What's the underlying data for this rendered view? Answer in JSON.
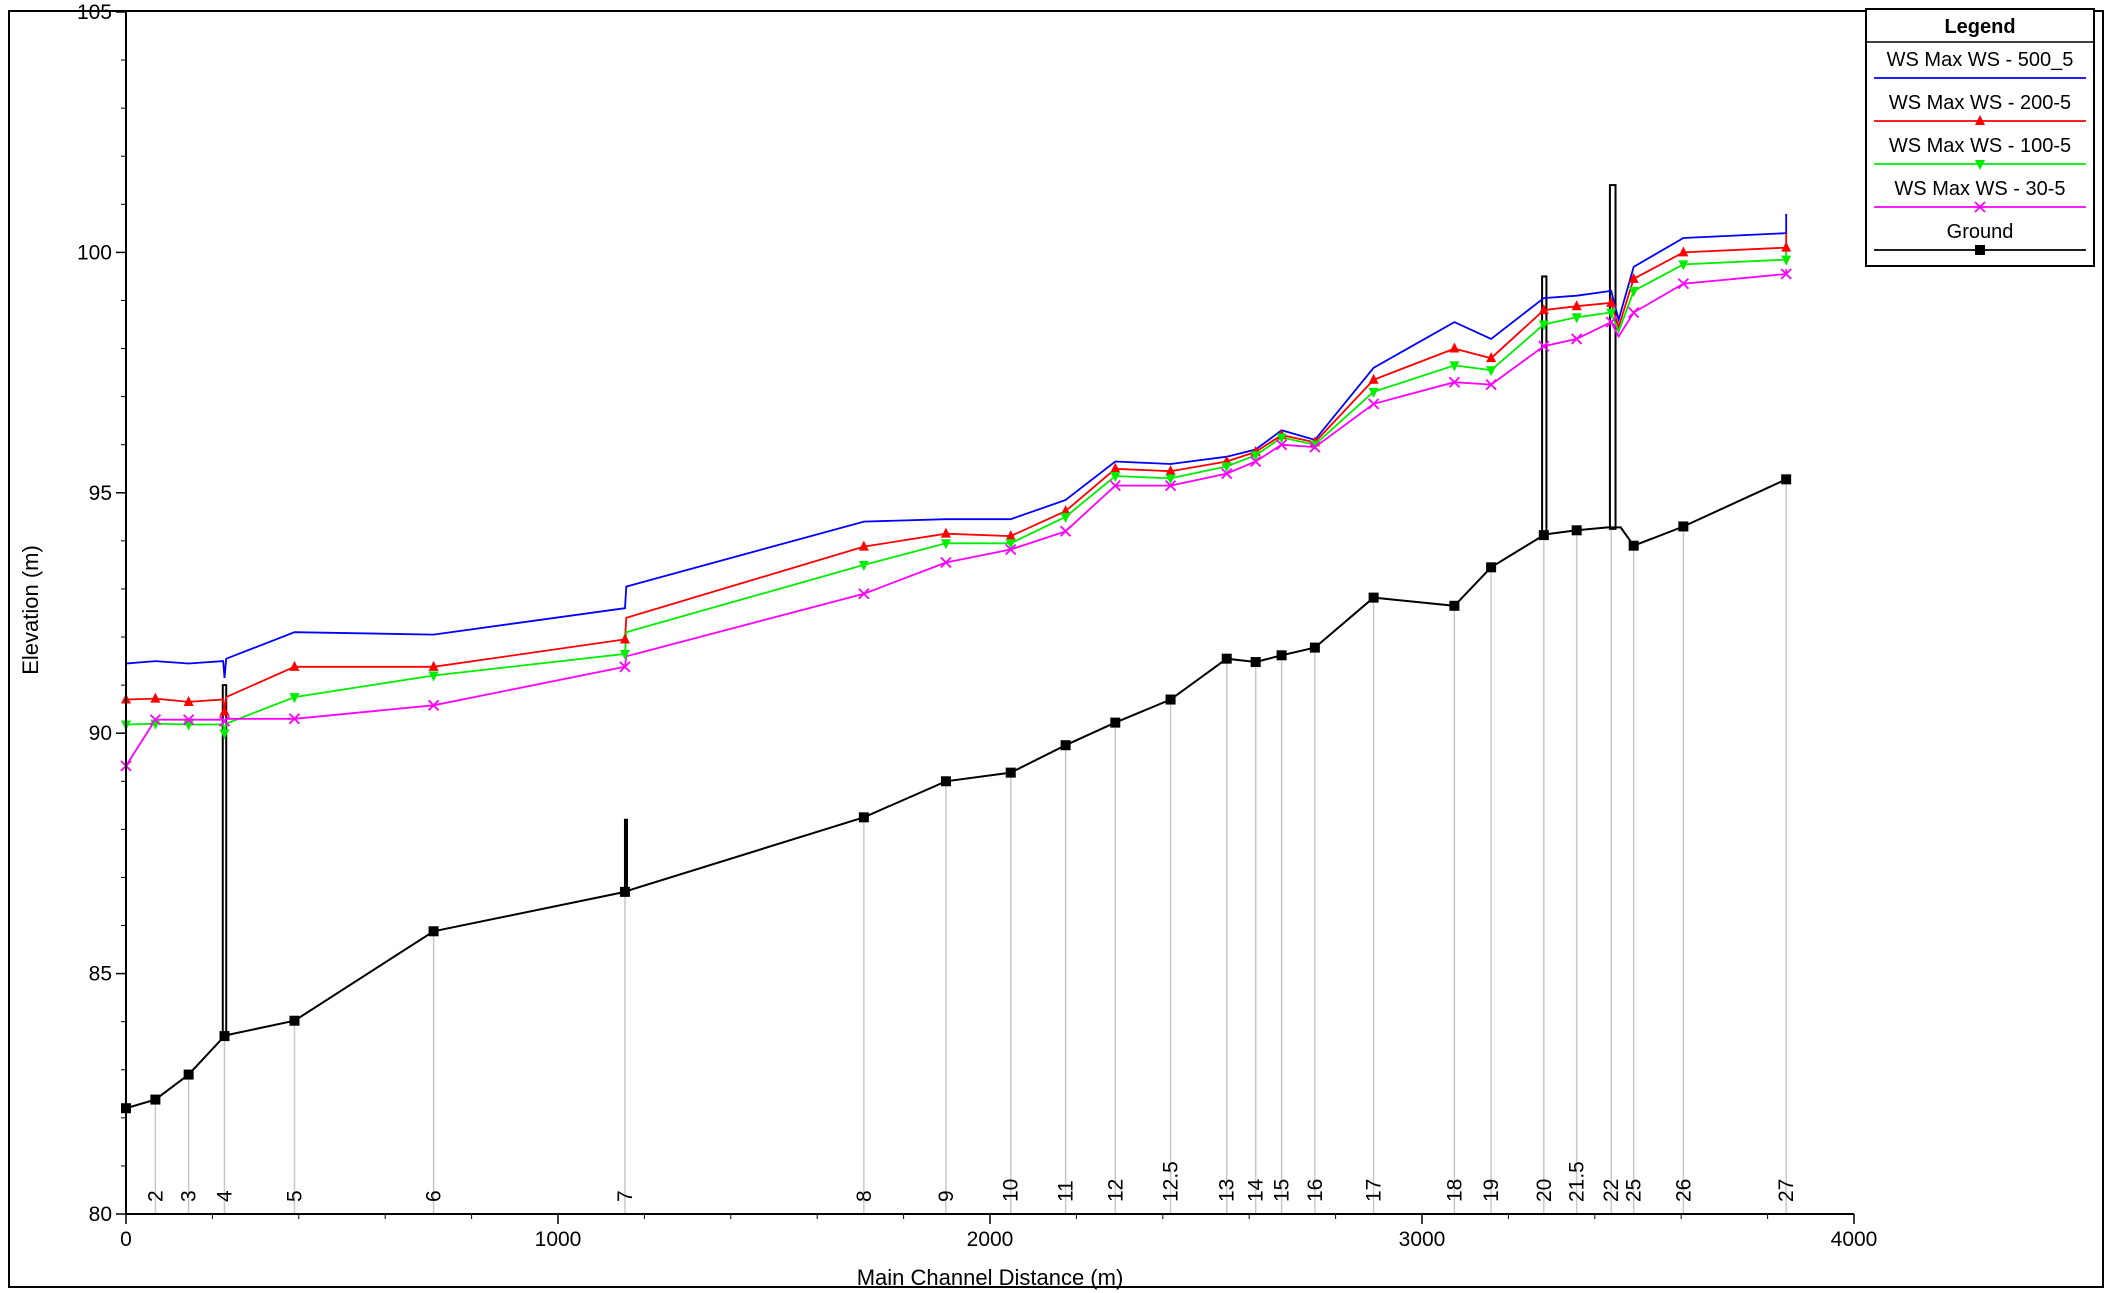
{
  "chart_data": {
    "type": "line",
    "xlabel": "Main Channel Distance (m)",
    "ylabel": "Elevation (m)",
    "xlim": [
      0,
      4000
    ],
    "ylim": [
      80,
      105
    ],
    "x_ticks": [
      0,
      1000,
      2000,
      3000,
      4000
    ],
    "y_ticks": [
      80,
      85,
      90,
      95,
      100,
      105
    ],
    "grid": false,
    "legend": {
      "title": "Legend",
      "placement": "top-right",
      "entries": [
        {
          "label": "WS  Max WS - 500_5",
          "color": "#0000ff",
          "marker": "none"
        },
        {
          "label": "WS  Max WS - 200-5",
          "color": "#ff0000",
          "marker": "triangle-up"
        },
        {
          "label": "WS  Max WS - 100-5",
          "color": "#00ee00",
          "marker": "triangle-down"
        },
        {
          "label": "WS  Max WS - 30-5",
          "color": "#ff00ff",
          "marker": "x"
        },
        {
          "label": "Ground",
          "color": "#000000",
          "marker": "square"
        }
      ]
    },
    "stations": [
      {
        "label": "2",
        "x": 68
      },
      {
        "label": "3",
        "x": 145
      },
      {
        "label": "4",
        "x": 228
      },
      {
        "label": "5",
        "x": 390
      },
      {
        "label": "6",
        "x": 712
      },
      {
        "label": "7",
        "x": 1155
      },
      {
        "label": "8",
        "x": 1708
      },
      {
        "label": "9",
        "x": 1898
      },
      {
        "label": "10",
        "x": 2048
      },
      {
        "label": "11",
        "x": 2175
      },
      {
        "label": "12",
        "x": 2290
      },
      {
        "label": "12.5",
        "x": 2418
      },
      {
        "label": "13",
        "x": 2548
      },
      {
        "label": "14",
        "x": 2615
      },
      {
        "label": "15",
        "x": 2675
      },
      {
        "label": "16",
        "x": 2752
      },
      {
        "label": "17",
        "x": 2888
      },
      {
        "label": "18",
        "x": 3075
      },
      {
        "label": "19",
        "x": 3160
      },
      {
        "label": "20",
        "x": 3282
      },
      {
        "label": "21.5",
        "x": 3358
      },
      {
        "label": "22",
        "x": 3438
      },
      {
        "label": "25",
        "x": 3490
      },
      {
        "label": "26",
        "x": 3605
      },
      {
        "label": "27",
        "x": 3843
      }
    ],
    "series": [
      {
        "name": "WS  Max WS - 500_5",
        "color": "#0000ff",
        "points": [
          [
            0,
            91.45
          ],
          [
            68,
            91.5
          ],
          [
            145,
            91.45
          ],
          [
            225,
            91.5
          ],
          [
            228,
            91.15
          ],
          [
            232,
            91.55
          ],
          [
            390,
            92.1
          ],
          [
            712,
            92.05
          ],
          [
            1155,
            92.6
          ],
          [
            1158,
            93.05
          ],
          [
            1708,
            94.4
          ],
          [
            1898,
            94.45
          ],
          [
            2048,
            94.45
          ],
          [
            2175,
            94.85
          ],
          [
            2290,
            95.65
          ],
          [
            2418,
            95.6
          ],
          [
            2548,
            95.75
          ],
          [
            2615,
            95.9
          ],
          [
            2675,
            96.3
          ],
          [
            2752,
            96.1
          ],
          [
            2888,
            97.6
          ],
          [
            3075,
            98.55
          ],
          [
            3160,
            98.2
          ],
          [
            3282,
            99.05
          ],
          [
            3358,
            99.1
          ],
          [
            3438,
            99.2
          ],
          [
            3455,
            98.6
          ],
          [
            3490,
            99.7
          ],
          [
            3605,
            100.3
          ],
          [
            3843,
            100.4
          ],
          [
            3843,
            100.8
          ]
        ]
      },
      {
        "name": "WS  Max WS - 200-5",
        "color": "#ff0000",
        "points": [
          [
            0,
            90.7
          ],
          [
            68,
            90.72
          ],
          [
            145,
            90.65
          ],
          [
            225,
            90.7
          ],
          [
            228,
            90.45
          ],
          [
            232,
            90.75
          ],
          [
            390,
            91.38
          ],
          [
            712,
            91.38
          ],
          [
            1155,
            91.95
          ],
          [
            1158,
            92.4
          ],
          [
            1708,
            93.88
          ],
          [
            1898,
            94.15
          ],
          [
            2048,
            94.1
          ],
          [
            2175,
            94.62
          ],
          [
            2290,
            95.5
          ],
          [
            2418,
            95.45
          ],
          [
            2548,
            95.65
          ],
          [
            2615,
            95.85
          ],
          [
            2675,
            96.2
          ],
          [
            2752,
            96.05
          ],
          [
            2888,
            97.35
          ],
          [
            3075,
            98.0
          ],
          [
            3160,
            97.8
          ],
          [
            3282,
            98.8
          ],
          [
            3358,
            98.88
          ],
          [
            3438,
            98.95
          ],
          [
            3455,
            98.45
          ],
          [
            3490,
            99.45
          ],
          [
            3605,
            100.0
          ],
          [
            3843,
            100.1
          ],
          [
            3843,
            100.4
          ]
        ]
      },
      {
        "name": "WS  Max WS - 100-5",
        "color": "#00ee00",
        "points": [
          [
            0,
            90.18
          ],
          [
            68,
            90.2
          ],
          [
            145,
            90.18
          ],
          [
            225,
            90.18
          ],
          [
            228,
            90.0
          ],
          [
            232,
            90.2
          ],
          [
            390,
            90.75
          ],
          [
            712,
            91.2
          ],
          [
            1155,
            91.65
          ],
          [
            1158,
            92.1
          ],
          [
            1708,
            93.5
          ],
          [
            1898,
            93.95
          ],
          [
            2048,
            93.95
          ],
          [
            2175,
            94.5
          ],
          [
            2290,
            95.35
          ],
          [
            2418,
            95.3
          ],
          [
            2548,
            95.55
          ],
          [
            2615,
            95.78
          ],
          [
            2675,
            96.15
          ],
          [
            2752,
            96.0
          ],
          [
            2888,
            97.1
          ],
          [
            3075,
            97.65
          ],
          [
            3160,
            97.55
          ],
          [
            3282,
            98.5
          ],
          [
            3358,
            98.65
          ],
          [
            3438,
            98.75
          ],
          [
            3455,
            98.35
          ],
          [
            3490,
            99.2
          ],
          [
            3605,
            99.75
          ],
          [
            3843,
            99.85
          ],
          [
            3843,
            100.15
          ]
        ]
      },
      {
        "name": "WS  Max WS - 30-5",
        "color": "#ff00ff",
        "points": [
          [
            0,
            89.32
          ],
          [
            68,
            90.28
          ],
          [
            145,
            90.28
          ],
          [
            225,
            90.28
          ],
          [
            228,
            90.25
          ],
          [
            232,
            90.3
          ],
          [
            390,
            90.3
          ],
          [
            712,
            90.58
          ],
          [
            1155,
            91.38
          ],
          [
            1158,
            91.6
          ],
          [
            1708,
            92.9
          ],
          [
            1898,
            93.55
          ],
          [
            2048,
            93.82
          ],
          [
            2175,
            94.2
          ],
          [
            2290,
            95.15
          ],
          [
            2418,
            95.15
          ],
          [
            2548,
            95.4
          ],
          [
            2615,
            95.65
          ],
          [
            2675,
            96.0
          ],
          [
            2752,
            95.95
          ],
          [
            2888,
            96.85
          ],
          [
            3075,
            97.3
          ],
          [
            3160,
            97.25
          ],
          [
            3282,
            98.05
          ],
          [
            3358,
            98.2
          ],
          [
            3438,
            98.55
          ],
          [
            3455,
            98.25
          ],
          [
            3490,
            98.75
          ],
          [
            3605,
            99.35
          ],
          [
            3843,
            99.55
          ],
          [
            3843,
            99.65
          ]
        ]
      },
      {
        "name": "Ground",
        "color": "#000000",
        "points": [
          [
            0,
            82.2
          ],
          [
            68,
            82.38
          ],
          [
            145,
            82.9
          ],
          [
            228,
            83.7
          ],
          [
            233,
            83.72
          ],
          [
            390,
            84.02
          ],
          [
            712,
            85.88
          ],
          [
            1155,
            86.7
          ],
          [
            1160,
            86.72
          ],
          [
            1708,
            88.25
          ],
          [
            1898,
            89.0
          ],
          [
            2048,
            89.18
          ],
          [
            2175,
            89.75
          ],
          [
            2290,
            90.22
          ],
          [
            2418,
            90.7
          ],
          [
            2548,
            91.55
          ],
          [
            2615,
            91.48
          ],
          [
            2675,
            91.62
          ],
          [
            2752,
            91.78
          ],
          [
            2888,
            92.82
          ],
          [
            3075,
            92.65
          ],
          [
            3160,
            93.45
          ],
          [
            3282,
            94.12
          ],
          [
            3290,
            94.14
          ],
          [
            3358,
            94.22
          ],
          [
            3430,
            94.28
          ],
          [
            3445,
            94.28
          ],
          [
            3460,
            94.28
          ],
          [
            3490,
            93.9
          ],
          [
            3605,
            94.3
          ],
          [
            3843,
            95.28
          ]
        ]
      }
    ],
    "structures": [
      {
        "x": [
          224,
          232
        ],
        "bottom": 83.7,
        "top": 91.0
      },
      {
        "x": [
          1155,
          1158
        ],
        "bottom": 86.7,
        "top": 88.2
      },
      {
        "x": [
          3278,
          3288
        ],
        "bottom": 94.1,
        "top": 99.5
      },
      {
        "x": [
          3435,
          3448
        ],
        "bottom": 94.25,
        "top": 101.4
      }
    ]
  }
}
